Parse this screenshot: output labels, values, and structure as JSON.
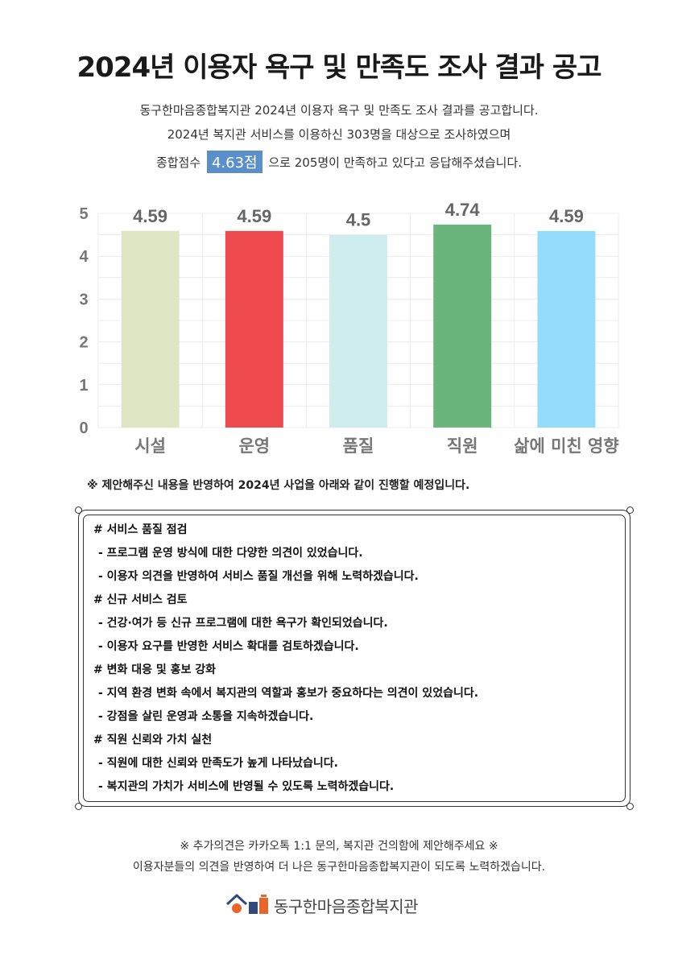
{
  "title": "2024년 이용자 욕구 및 만족도 조사 결과 공고",
  "intro": {
    "line1": "동구한마음종합복지관 2024년 이용자 욕구 및 만족도 조사 결과를 공고합니다.",
    "line2": "2024년 복지관 서비스를 이용하신 303명을 대상으로 조사하였으며",
    "line3_before": "종합점수",
    "score": "4.63점",
    "line3_after": "으로 205명이 만족하고 있다고 응답해주셨습니다."
  },
  "chart_data": {
    "type": "bar",
    "categories": [
      "시설",
      "운영",
      "품질",
      "직원",
      "삶에 미친 영향"
    ],
    "values": [
      4.59,
      4.59,
      4.5,
      4.74,
      4.59
    ],
    "ylim": [
      0,
      5
    ],
    "yticks": [
      0,
      1,
      2,
      3,
      4,
      5
    ],
    "title": "",
    "xlabel": "",
    "ylabel": "",
    "grid": true,
    "colors": [
      "#dfe6c4",
      "#ef4b4e",
      "#cfecef",
      "#6ab57b",
      "#93dcfb"
    ]
  },
  "notice": "※ 제안해주신 내용을 반영하여 2024년 사업을 아래와 같이 진행할 예정입니다.",
  "sections": [
    {
      "title": "# 서비스 품질 점검",
      "items": [
        "- 프로그램 운영 방식에 대한 다양한 의견이 있었습니다.",
        "- 이용자 의견을 반영하여 서비스 품질 개선을 위해 노력하겠습니다."
      ]
    },
    {
      "title": "# 신규 서비스 검토",
      "items": [
        "- 건강·여가 등 신규 프로그램에 대한 욕구가 확인되었습니다.",
        "- 이용자 요구를 반영한 서비스 확대를 검토하겠습니다."
      ]
    },
    {
      "title": "# 변화 대응 및 홍보 강화",
      "items": [
        "- 지역 환경 변화 속에서 복지관의 역할과 홍보가 중요하다는 의견이 있었습니다.",
        "- 강점을 살린 운영과 소통을 지속하겠습니다."
      ]
    },
    {
      "title": "# 직원 신뢰와 가치 실천",
      "items": [
        "- 직원에 대한 신뢰와 만족도가 높게 나타났습니다.",
        "- 복지관의 가치가 서비스에 반영될 수 있도록 노력하겠습니다."
      ]
    }
  ],
  "footer": {
    "line1": "※ 추가의견은 카카오톡 1:1 문의, 복지관 건의함에 제안해주세요 ※",
    "line2": "이용자분들의 의견을 반영하여 더 나은 동구한마음종합복지관이 되도록 노력하겠습니다."
  },
  "logo": {
    "name": "동구한마음종합복지관",
    "icon": "house-logo-icon"
  }
}
